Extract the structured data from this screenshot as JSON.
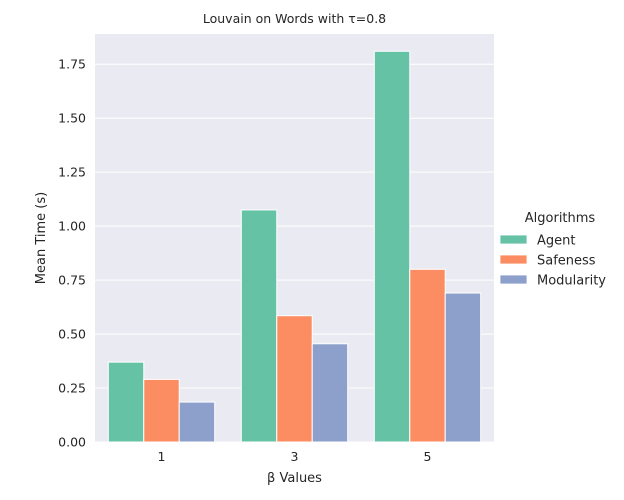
{
  "chart_data": {
    "type": "bar",
    "title": "Louvain on Words with τ=0.8",
    "xlabel": "β Values",
    "ylabel": "Mean Time (s)",
    "categories": [
      "1",
      "3",
      "5"
    ],
    "series": [
      {
        "name": "Agent",
        "values": [
          0.37,
          1.075,
          1.81
        ],
        "color": "#66c2a5"
      },
      {
        "name": "Safeness",
        "values": [
          0.29,
          0.585,
          0.8
        ],
        "color": "#fc8d62"
      },
      {
        "name": "Modularity",
        "values": [
          0.185,
          0.455,
          0.69
        ],
        "color": "#8da0cb"
      }
    ],
    "ylim": [
      0,
      1.89
    ],
    "yticks": [
      0.0,
      0.25,
      0.5,
      0.75,
      1.0,
      1.25,
      1.5,
      1.75
    ],
    "ytick_labels": [
      "0.00",
      "0.25",
      "0.50",
      "0.75",
      "1.00",
      "1.25",
      "1.50",
      "1.75"
    ],
    "grid": true,
    "legend": {
      "title": "Algorithms",
      "placement": "right"
    },
    "colors": {
      "background": "#eaeaf2",
      "grid": "#ffffff",
      "text": "#262626"
    }
  }
}
